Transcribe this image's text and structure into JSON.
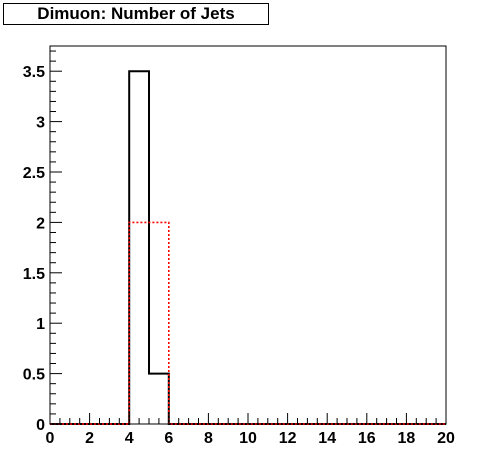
{
  "chart_data": {
    "type": "histogram",
    "title": "Dimuon: Number of Jets",
    "xlim": [
      0,
      20
    ],
    "ylim": [
      0,
      3.75
    ],
    "x_ticks": [
      0,
      2,
      4,
      6,
      8,
      10,
      12,
      14,
      16,
      18,
      20
    ],
    "y_ticks": [
      0,
      0.5,
      1,
      1.5,
      2,
      2.5,
      3,
      3.5
    ],
    "x_tick_labels": [
      "0",
      "2",
      "4",
      "6",
      "8",
      "10",
      "12",
      "14",
      "16",
      "18",
      "20"
    ],
    "y_tick_labels": [
      "0",
      "0.5",
      "1",
      "1.5",
      "2",
      "2.5",
      "3",
      "3.5"
    ],
    "bin_width": 1,
    "series": [
      {
        "style": "solid",
        "color": "#000000",
        "bins": [
          {
            "x_low": 0,
            "value": 0
          },
          {
            "x_low": 1,
            "value": 0
          },
          {
            "x_low": 2,
            "value": 0
          },
          {
            "x_low": 3,
            "value": 0
          },
          {
            "x_low": 4,
            "value": 3.5
          },
          {
            "x_low": 5,
            "value": 0.5
          },
          {
            "x_low": 6,
            "value": 0
          },
          {
            "x_low": 7,
            "value": 0
          },
          {
            "x_low": 8,
            "value": 0
          },
          {
            "x_low": 9,
            "value": 0
          },
          {
            "x_low": 10,
            "value": 0
          },
          {
            "x_low": 11,
            "value": 0
          },
          {
            "x_low": 12,
            "value": 0
          },
          {
            "x_low": 13,
            "value": 0
          },
          {
            "x_low": 14,
            "value": 0
          },
          {
            "x_low": 15,
            "value": 0
          },
          {
            "x_low": 16,
            "value": 0
          },
          {
            "x_low": 17,
            "value": 0
          },
          {
            "x_low": 18,
            "value": 0
          },
          {
            "x_low": 19,
            "value": 0
          }
        ]
      },
      {
        "style": "dashed",
        "color": "#ff0000",
        "bins": [
          {
            "x_low": 0,
            "value": 0
          },
          {
            "x_low": 1,
            "value": 0
          },
          {
            "x_low": 2,
            "value": 0
          },
          {
            "x_low": 3,
            "value": 0
          },
          {
            "x_low": 4,
            "value": 2
          },
          {
            "x_low": 5,
            "value": 2
          },
          {
            "x_low": 6,
            "value": 0
          },
          {
            "x_low": 7,
            "value": 0
          },
          {
            "x_low": 8,
            "value": 0
          },
          {
            "x_low": 9,
            "value": 0
          },
          {
            "x_low": 10,
            "value": 0
          },
          {
            "x_low": 11,
            "value": 0
          },
          {
            "x_low": 12,
            "value": 0
          },
          {
            "x_low": 13,
            "value": 0
          },
          {
            "x_low": 14,
            "value": 0
          },
          {
            "x_low": 15,
            "value": 0
          },
          {
            "x_low": 16,
            "value": 0
          },
          {
            "x_low": 17,
            "value": 0
          },
          {
            "x_low": 18,
            "value": 0
          },
          {
            "x_low": 19,
            "value": 0
          }
        ]
      }
    ]
  }
}
